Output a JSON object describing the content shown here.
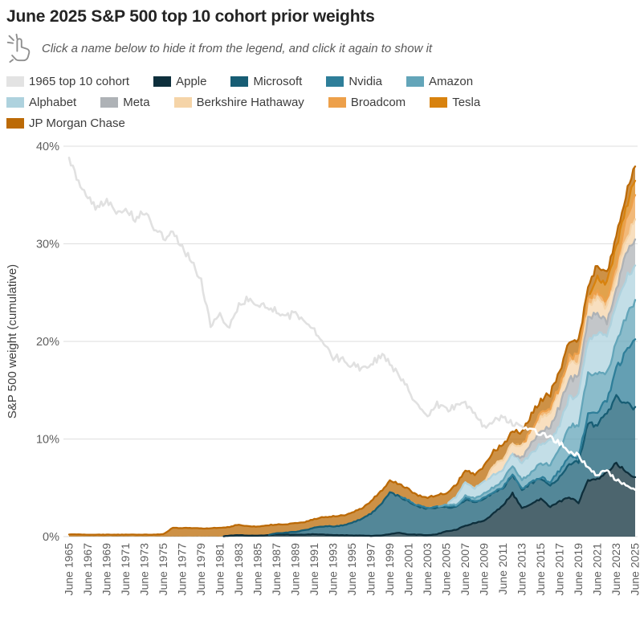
{
  "title": "June 2025 S&P 500 top 10 cohort prior weights",
  "subtitle": "Click a name below to hide it from the legend, and click it again to show it",
  "hint_icon": "click-hand-icon",
  "colors": {
    "background": "#ffffff",
    "gridline": "#dedede",
    "tick_text": "#5f5f5f",
    "cohort_line_on_white": "#e1e1e1",
    "cohort_line_on_stack": "#ffffff"
  },
  "legend": {
    "items": [
      {
        "label": "1965 top 10 cohort",
        "color": "#e3e3e3"
      },
      {
        "label": "Apple",
        "color": "#0e2f3c"
      },
      {
        "label": "Microsoft",
        "color": "#175d74"
      },
      {
        "label": "Nvidia",
        "color": "#2e7e99"
      },
      {
        "label": "Amazon",
        "color": "#63a5b9"
      },
      {
        "label": "Alphabet",
        "color": "#aed2de"
      },
      {
        "label": "Meta",
        "color": "#aeb2b6"
      },
      {
        "label": "Berkshire Hathaway",
        "color": "#f5d4a8"
      },
      {
        "label": "Broadcom",
        "color": "#eda04a"
      },
      {
        "label": "Tesla",
        "color": "#d8820e"
      },
      {
        "label": "JP Morgan Chase",
        "color": "#bc6a06"
      }
    ]
  },
  "chart_data": {
    "type": "area",
    "stacked": true,
    "frequency": "annual (June of each year)",
    "x_start_year": 1965,
    "x_end_year": 2025,
    "x_tick_labels": [
      "June 1965",
      "June 1967",
      "June 1969",
      "June 1971",
      "June 1973",
      "June 1975",
      "June 1977",
      "June 1979",
      "June 1981",
      "June 1983",
      "June 1985",
      "June 1987",
      "June 1989",
      "June 1991",
      "June 1993",
      "June 1995",
      "June 1997",
      "June 1999",
      "June 2001",
      "June 2003",
      "June 2005",
      "June 2007",
      "June 2009",
      "June 2011",
      "June 2013",
      "June 2015",
      "June 2017",
      "June 2019",
      "June 2021",
      "June 2023",
      "June 2025"
    ],
    "ylabel": "S&P 500 weight (cumulative)",
    "y_ticks": [
      {
        "value": 0,
        "label": "0%"
      },
      {
        "value": 10,
        "label": "10%"
      },
      {
        "value": 20,
        "label": "20%"
      },
      {
        "value": 30,
        "label": "30%"
      },
      {
        "value": 40,
        "label": "40%"
      }
    ],
    "ylim": [
      0,
      40
    ],
    "grid": true,
    "legend_position": "top",
    "line_series": {
      "name": "1965 top 10 cohort",
      "color_on_white": "#e1e1e1",
      "color_on_stack": "#ffffff",
      "values": [
        38.7,
        36.2,
        34.6,
        33.6,
        34.6,
        33.0,
        33.6,
        32.6,
        33.2,
        31.6,
        30.6,
        31.0,
        29.6,
        28.2,
        26.2,
        21.6,
        22.6,
        21.6,
        23.6,
        24.4,
        23.6,
        23.8,
        23.0,
        22.4,
        23.0,
        22.0,
        21.0,
        19.6,
        18.4,
        18.2,
        17.6,
        17.2,
        17.6,
        18.6,
        17.8,
        16.4,
        15.0,
        13.4,
        12.4,
        13.6,
        13.0,
        13.4,
        13.6,
        12.8,
        11.2,
        12.0,
        12.2,
        11.6,
        11.2,
        11.0,
        10.6,
        10.2,
        9.6,
        8.8,
        8.3,
        7.0,
        6.3,
        6.8,
        5.8,
        5.3,
        4.8
      ]
    },
    "series": [
      {
        "name": "Apple",
        "color": "#0e2f3c",
        "values": [
          0,
          0,
          0,
          0,
          0,
          0,
          0,
          0,
          0,
          0,
          0,
          0,
          0,
          0,
          0,
          0,
          0,
          0.1,
          0.15,
          0.1,
          0.1,
          0.15,
          0.2,
          0.2,
          0.2,
          0.2,
          0.25,
          0.2,
          0.15,
          0.15,
          0.12,
          0.1,
          0.08,
          0.12,
          0.25,
          0.4,
          0.2,
          0.2,
          0.15,
          0.25,
          0.55,
          0.7,
          1.1,
          1.4,
          1.6,
          2.4,
          3.2,
          4.4,
          2.9,
          3.4,
          3.9,
          3.0,
          3.6,
          4.0,
          3.5,
          5.7,
          5.9,
          6.6,
          7.6,
          6.6,
          6.1
        ]
      },
      {
        "name": "Microsoft",
        "color": "#175d74",
        "values": [
          0,
          0,
          0,
          0,
          0,
          0,
          0,
          0,
          0,
          0,
          0,
          0,
          0,
          0,
          0,
          0,
          0,
          0,
          0,
          0,
          0,
          0,
          0.15,
          0.2,
          0.3,
          0.45,
          0.65,
          0.85,
          0.9,
          1.0,
          1.3,
          1.7,
          2.3,
          3.1,
          4.3,
          3.7,
          3.4,
          2.9,
          2.7,
          2.7,
          2.5,
          2.3,
          2.7,
          2.1,
          2.3,
          2.1,
          1.8,
          1.9,
          1.9,
          2.1,
          2.1,
          2.3,
          2.5,
          3.3,
          4.2,
          5.9,
          5.5,
          6.0,
          6.9,
          7.1,
          6.9
        ]
      },
      {
        "name": "Nvidia",
        "color": "#2e7e99",
        "values": [
          0,
          0,
          0,
          0,
          0,
          0,
          0,
          0,
          0,
          0,
          0,
          0,
          0,
          0,
          0,
          0,
          0,
          0,
          0,
          0,
          0,
          0,
          0,
          0,
          0,
          0,
          0,
          0,
          0,
          0,
          0,
          0,
          0,
          0,
          0,
          0,
          0.1,
          0.08,
          0.1,
          0.1,
          0.08,
          0.1,
          0.15,
          0.1,
          0.08,
          0.08,
          0.08,
          0.07,
          0.07,
          0.08,
          0.1,
          0.25,
          0.7,
          0.9,
          0.5,
          0.8,
          1.5,
          1.2,
          2.7,
          5.1,
          7.3
        ]
      },
      {
        "name": "Amazon",
        "color": "#63a5b9",
        "values": [
          0,
          0,
          0,
          0,
          0,
          0,
          0,
          0,
          0,
          0,
          0,
          0,
          0,
          0,
          0,
          0,
          0,
          0,
          0,
          0,
          0,
          0,
          0,
          0,
          0,
          0,
          0,
          0,
          0,
          0,
          0,
          0,
          0,
          0,
          0,
          0,
          0,
          0,
          0,
          0,
          0.15,
          0.14,
          0.22,
          0.3,
          0.4,
          0.5,
          0.7,
          0.9,
          1.0,
          1.0,
          1.4,
          1.8,
          2.1,
          3.1,
          3.2,
          4.4,
          4.0,
          2.9,
          2.8,
          3.6,
          3.9
        ]
      },
      {
        "name": "Alphabet",
        "color": "#aed2de",
        "values": [
          0,
          0,
          0,
          0,
          0,
          0,
          0,
          0,
          0,
          0,
          0,
          0,
          0,
          0,
          0,
          0,
          0,
          0,
          0,
          0,
          0,
          0,
          0,
          0,
          0,
          0,
          0,
          0,
          0,
          0,
          0,
          0,
          0,
          0,
          0,
          0,
          0,
          0,
          0,
          0,
          0,
          0.85,
          1.4,
          1.1,
          1.25,
          1.2,
          1.1,
          1.3,
          1.6,
          1.9,
          2.1,
          2.4,
          2.6,
          3.0,
          3.0,
          3.3,
          3.9,
          3.7,
          3.5,
          4.1,
          3.5
        ]
      },
      {
        "name": "Meta",
        "color": "#aeb2b6",
        "values": [
          0,
          0,
          0,
          0,
          0,
          0,
          0,
          0,
          0,
          0,
          0,
          0,
          0,
          0,
          0,
          0,
          0,
          0,
          0,
          0,
          0,
          0,
          0,
          0,
          0,
          0,
          0,
          0,
          0,
          0,
          0,
          0,
          0,
          0,
          0,
          0,
          0,
          0,
          0,
          0,
          0,
          0,
          0,
          0,
          0,
          0,
          0,
          0,
          0.65,
          1.0,
          1.2,
          1.5,
          1.8,
          1.9,
          1.9,
          2.1,
          2.3,
          1.4,
          1.7,
          2.4,
          2.9
        ]
      },
      {
        "name": "Berkshire Hathaway",
        "color": "#f5d4a8",
        "values": [
          0,
          0,
          0,
          0,
          0,
          0,
          0,
          0,
          0,
          0,
          0,
          0,
          0,
          0,
          0,
          0,
          0,
          0,
          0,
          0,
          0,
          0,
          0,
          0,
          0,
          0,
          0,
          0,
          0,
          0,
          0,
          0,
          0,
          0,
          0,
          0,
          0,
          0,
          0,
          0,
          0,
          0,
          0,
          0,
          0,
          1.0,
          1.1,
          1.0,
          1.1,
          1.4,
          1.4,
          1.5,
          1.6,
          1.7,
          1.7,
          1.5,
          1.4,
          1.6,
          1.6,
          1.7,
          1.8
        ]
      },
      {
        "name": "Broadcom",
        "color": "#eda04a",
        "values": [
          0,
          0,
          0,
          0,
          0,
          0,
          0,
          0,
          0,
          0,
          0,
          0,
          0,
          0,
          0,
          0,
          0,
          0,
          0,
          0,
          0,
          0,
          0,
          0,
          0,
          0,
          0,
          0,
          0,
          0,
          0,
          0,
          0,
          0,
          0,
          0,
          0,
          0,
          0,
          0,
          0,
          0,
          0,
          0,
          0,
          0,
          0,
          0,
          0,
          0.2,
          0.3,
          0.4,
          0.5,
          0.5,
          0.55,
          0.6,
          0.6,
          0.7,
          0.9,
          1.7,
          2.4
        ]
      },
      {
        "name": "Tesla",
        "color": "#d8820e",
        "values": [
          0,
          0,
          0,
          0,
          0,
          0,
          0,
          0,
          0,
          0,
          0,
          0,
          0,
          0,
          0,
          0,
          0,
          0,
          0,
          0,
          0,
          0,
          0,
          0,
          0,
          0,
          0,
          0,
          0,
          0,
          0,
          0,
          0,
          0,
          0,
          0,
          0,
          0,
          0,
          0,
          0,
          0,
          0,
          0,
          0,
          0,
          0,
          0,
          0,
          0,
          0,
          0,
          0,
          0,
          0,
          0,
          1.5,
          1.8,
          1.9,
          1.3,
          1.9
        ]
      },
      {
        "name": "JP Morgan Chase",
        "color": "#bc6a06",
        "values": [
          0.22,
          0.22,
          0.2,
          0.2,
          0.2,
          0.2,
          0.2,
          0.2,
          0.2,
          0.2,
          0.25,
          0.9,
          0.9,
          0.9,
          0.85,
          0.85,
          0.9,
          0.9,
          1.1,
          0.95,
          0.95,
          1.0,
          0.9,
          0.85,
          0.9,
          0.85,
          0.9,
          0.95,
          1.05,
          1.0,
          1.05,
          1.1,
          1.25,
          1.35,
          1.25,
          1.2,
          1.15,
          1.0,
          1.1,
          1.2,
          1.15,
          1.2,
          1.2,
          1.4,
          1.6,
          1.5,
          1.4,
          1.3,
          1.4,
          1.4,
          1.45,
          1.5,
          1.6,
          1.6,
          1.5,
          1.15,
          1.3,
          1.15,
          1.25,
          1.35,
          1.5
        ]
      }
    ]
  }
}
